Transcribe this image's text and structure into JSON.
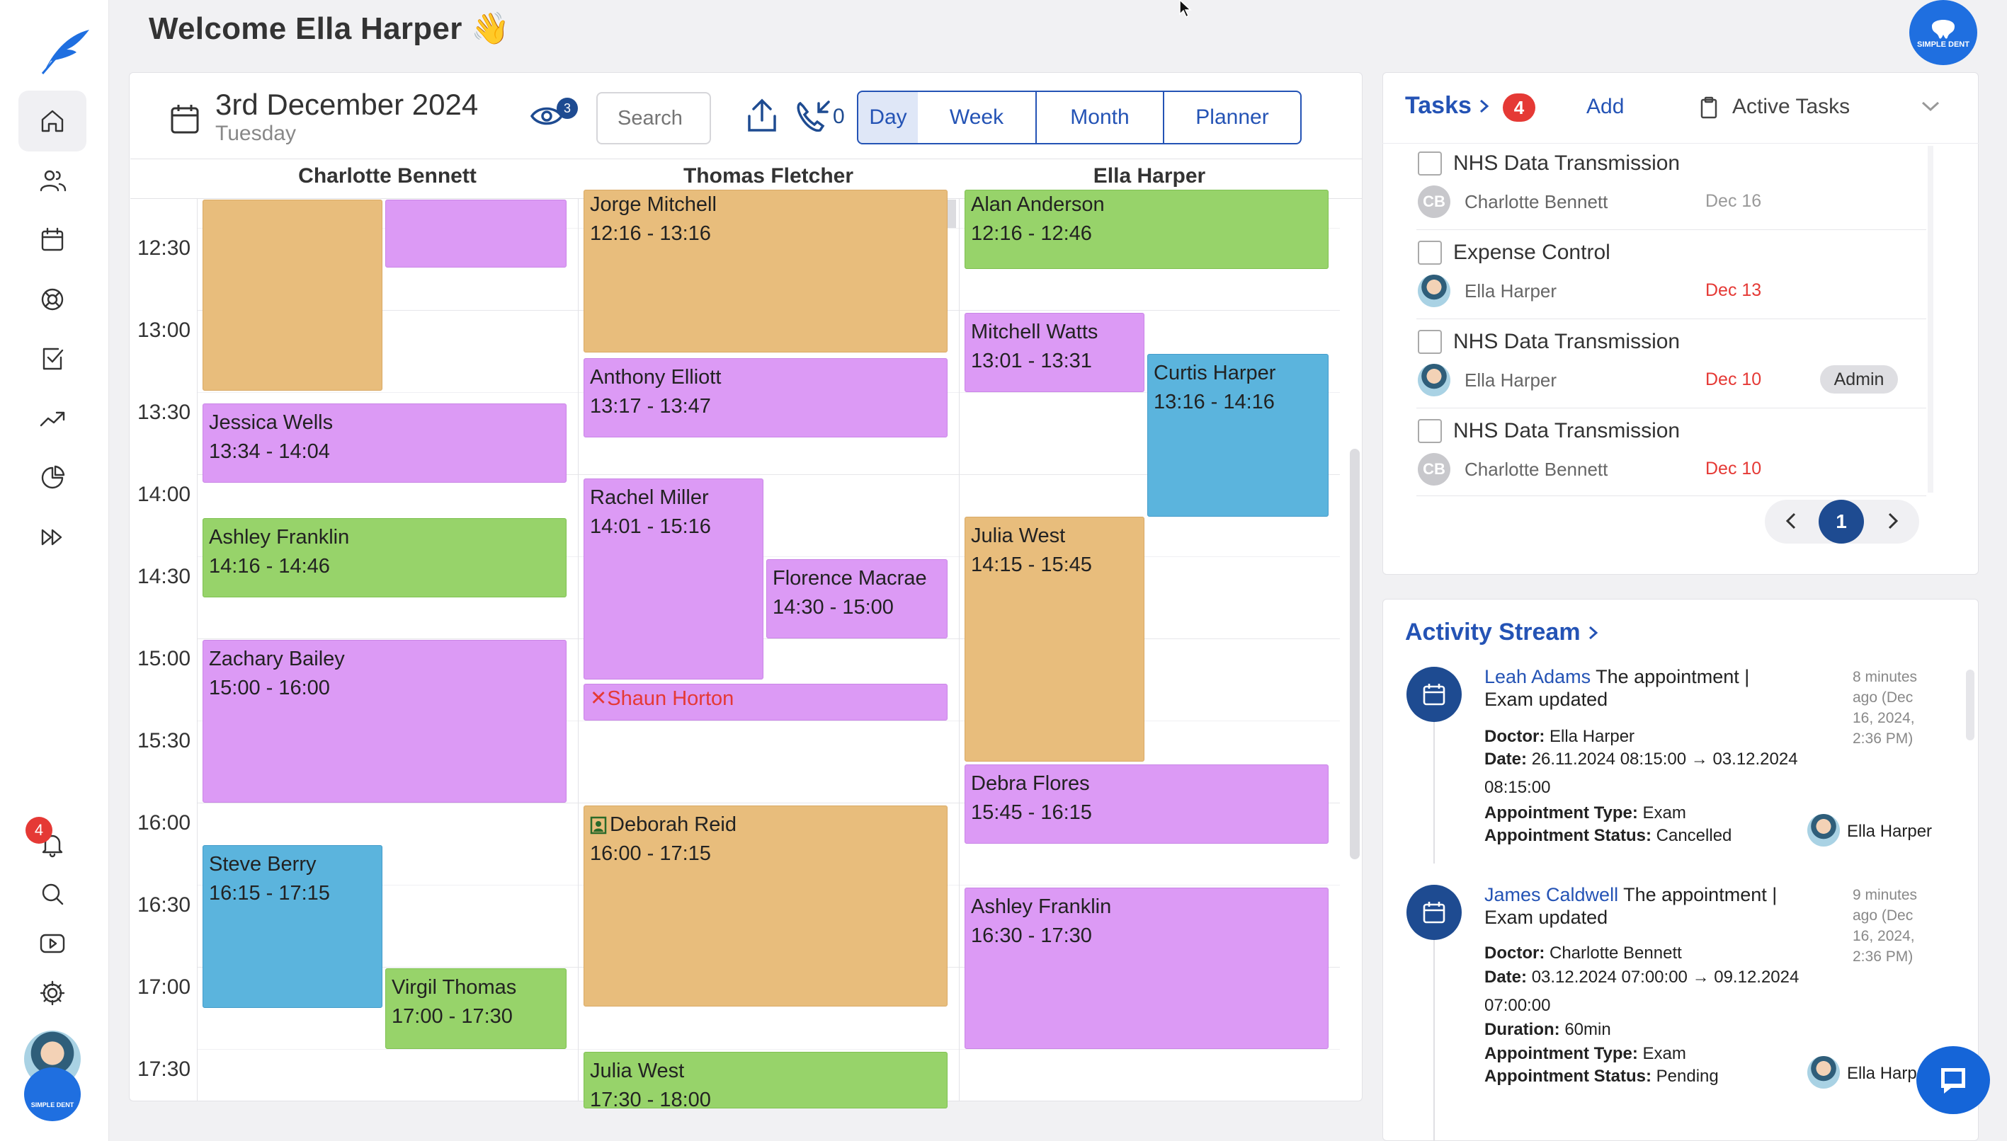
{
  "header": {
    "welcome": "Welcome Ella Harper 👋",
    "avatar_brand": "SIMPLE DENT"
  },
  "sidebar": {
    "items": [
      "home-icon",
      "users-icon",
      "calendar-icon",
      "support-icon",
      "tasks-icon",
      "trend-icon",
      "pie-chart-icon",
      "fast-forward-icon"
    ],
    "bottom": [
      "bell-icon",
      "search-icon",
      "video-icon",
      "gear-icon"
    ],
    "notification_count": "4",
    "brand": "SIMPLE DENT"
  },
  "calendar": {
    "date_title": "3rd December 2024",
    "weekday": "Tuesday",
    "viewers_count": "3",
    "search_placeholder": "Search",
    "calls_count": "0",
    "views": [
      "Day",
      "Week",
      "Month",
      "Planner"
    ],
    "active_view": "Day",
    "columns": [
      "Charlotte Bennett",
      "Thomas Fletcher",
      "Ella Harper"
    ],
    "times": [
      "12:30",
      "13:00",
      "13:30",
      "14:00",
      "14:30",
      "15:00",
      "15:30",
      "16:00",
      "16:30",
      "17:00",
      "17:30"
    ],
    "appointments": [
      {
        "name": "",
        "time": "",
        "color": "orange"
      },
      {
        "name": "",
        "time": "",
        "color": "purple"
      },
      {
        "name": "Jessica Wells",
        "time": "13:34 - 14:04",
        "color": "purple"
      },
      {
        "name": "Ashley Franklin",
        "time": "14:16 - 14:46",
        "color": "green"
      },
      {
        "name": "Zachary Bailey",
        "time": "15:00 - 16:00",
        "color": "purple"
      },
      {
        "name": "Steve Berry",
        "time": "16:15 - 17:15",
        "color": "blue"
      },
      {
        "name": "Virgil Thomas",
        "time": "17:00 - 17:30",
        "color": "green"
      },
      {
        "name": "Jorge Mitchell",
        "time": "12:16 - 13:16",
        "color": "orange"
      },
      {
        "name": "Anthony Elliott",
        "time": "13:17 - 13:47",
        "color": "purple"
      },
      {
        "name": "Rachel Miller",
        "time": "14:01 - 15:16",
        "color": "purple"
      },
      {
        "name": "Florence Macrae",
        "time": "14:30 - 15:00",
        "color": "purple"
      },
      {
        "name": "✕Shaun Horton",
        "time": "",
        "color": "purple",
        "cancelled": true
      },
      {
        "name": "Deborah Reid",
        "time": "16:00 - 17:15",
        "color": "orange"
      },
      {
        "name": "Julia West",
        "time": "17:30 - 18:00",
        "color": "green"
      },
      {
        "name": "Alan Anderson",
        "time": "12:16 - 12:46",
        "color": "green"
      },
      {
        "name": "Mitchell Watts",
        "time": "13:01 - 13:31",
        "color": "purple"
      },
      {
        "name": "Curtis Harper",
        "time": "13:16 - 14:16",
        "color": "blue"
      },
      {
        "name": "Julia West",
        "time": "14:15 - 15:45",
        "color": "orange"
      },
      {
        "name": "Debra Flores",
        "time": "15:45 - 16:15",
        "color": "purple"
      },
      {
        "name": "Ashley Franklin",
        "time": "16:30 - 17:30",
        "color": "purple"
      }
    ]
  },
  "tasks": {
    "title": "Tasks",
    "count": "4",
    "add_label": "Add",
    "filter_label": "Active Tasks",
    "items": [
      {
        "title": "NHS Data Transmission",
        "user": "Charlotte Bennett",
        "initials": "CB",
        "date": "Dec 16",
        "badge": ""
      },
      {
        "title": "Expense Control",
        "user": "Ella Harper",
        "initials": "",
        "date": "Dec 13",
        "badge": ""
      },
      {
        "title": "NHS Data Transmission",
        "user": "Ella Harper",
        "initials": "",
        "date": "Dec 10",
        "badge": "Admin"
      },
      {
        "title": "NHS Data Transmission",
        "user": "Charlotte Bennett",
        "initials": "CB",
        "date": "Dec 10",
        "badge": ""
      }
    ],
    "page": "1",
    "colors": {
      "overdue": "#e53935",
      "normal": "#999999"
    }
  },
  "activity": {
    "title": "Activity Stream",
    "items": [
      {
        "actor": "Leah Adams",
        "text": "The appointment |",
        "text2": "Exam updated",
        "ago": [
          "8 minutes",
          "ago (Dec",
          "16, 2024,",
          "2:36 PM)"
        ],
        "doctor_label": "Doctor:",
        "doctor": "Ella Harper",
        "date_label": "Date:",
        "date": "26.11.2024 08:15:00 → 03.12.2024",
        "date2": "08:15:00",
        "type_label": "Appointment Type:",
        "type": "Exam",
        "status_label": "Appointment Status:",
        "status": "Cancelled",
        "by": "Ella Harper"
      },
      {
        "actor": "James Caldwell",
        "text": "The appointment |",
        "text2": "Exam updated",
        "ago": [
          "9 minutes",
          "ago (Dec",
          "16, 2024,",
          "2:36 PM)"
        ],
        "doctor_label": "Doctor:",
        "doctor": "Charlotte Bennett",
        "date_label": "Date:",
        "date": "03.12.2024 07:00:00 → 09.12.2024",
        "date2": "07:00:00",
        "duration_label": "Duration:",
        "duration": "60min",
        "type_label": "Appointment Type:",
        "type": "Exam",
        "status_label": "Appointment Status:",
        "status": "Pending",
        "by": "Ella Harp"
      }
    ]
  }
}
